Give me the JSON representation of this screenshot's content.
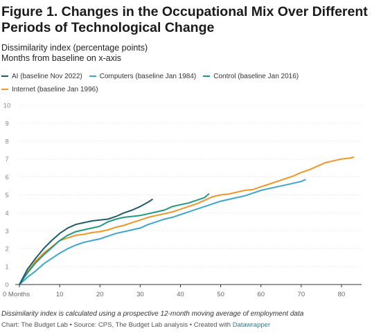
{
  "header": {
    "title": "Figure 1. Changes in the Occupational Mix Over Different Periods of Technological Change",
    "subtitle_line1": "Dissimilarity index (percentage points)",
    "subtitle_line2": "Months from baseline on x-axis"
  },
  "footer": {
    "note": "Dissimilarity index is calculated using a prospective 12-month moving average of employment data",
    "credits": "Chart: The Budget Lab • Source: CPS, The Budget Lab analysis • Created with ",
    "credits_link": "Datawrapper"
  },
  "chart_data": {
    "type": "line",
    "title": "Figure 1. Changes in the Occupational Mix Over Different Periods of Technological Change",
    "subtitle": "Dissimilarity index (percentage points)",
    "xlabel": "Months from baseline on x-axis",
    "ylabel": "Dissimilarity index (percentage points)",
    "xlim": [
      0,
      85
    ],
    "ylim": [
      0,
      10
    ],
    "x_ticks": [
      0,
      10,
      20,
      30,
      40,
      50,
      60,
      70,
      80
    ],
    "x_tick_labels": [
      "0 Months",
      "10",
      "20",
      "30",
      "40",
      "50",
      "60",
      "70",
      "80"
    ],
    "y_ticks": [
      0,
      1,
      2,
      3,
      4,
      5,
      6,
      7,
      8,
      9,
      10
    ],
    "y_tick_labels": [
      "0",
      "1",
      "2",
      "3",
      "4",
      "5",
      "6",
      "7",
      "8",
      "9",
      "10"
    ],
    "grid": true,
    "legend_position": "top",
    "series": [
      {
        "name": "AI (baseline Nov 2022)",
        "color": "#1d5b6b",
        "x": [
          0,
          2,
          4,
          6,
          8,
          10,
          12,
          14,
          16,
          18,
          20,
          22,
          24,
          26,
          28,
          30,
          32,
          33
        ],
        "y": [
          0,
          0.85,
          1.45,
          2.0,
          2.45,
          2.85,
          3.15,
          3.35,
          3.45,
          3.55,
          3.6,
          3.65,
          3.8,
          4.0,
          4.15,
          4.35,
          4.6,
          4.75
        ]
      },
      {
        "name": "Computers (baseline Jan 1984)",
        "color": "#3ba6d0",
        "x": [
          0,
          2,
          4,
          6,
          8,
          10,
          12,
          14,
          16,
          18,
          20,
          22,
          24,
          26,
          28,
          30,
          32,
          34,
          36,
          38,
          40,
          42,
          44,
          46,
          48,
          50,
          52,
          54,
          56,
          58,
          60,
          62,
          64,
          66,
          68,
          70,
          71
        ],
        "y": [
          0,
          0.4,
          0.75,
          1.15,
          1.45,
          1.75,
          2.0,
          2.2,
          2.35,
          2.45,
          2.55,
          2.7,
          2.85,
          2.95,
          3.05,
          3.15,
          3.35,
          3.5,
          3.65,
          3.75,
          3.9,
          4.05,
          4.2,
          4.35,
          4.5,
          4.65,
          4.75,
          4.85,
          4.95,
          5.1,
          5.25,
          5.35,
          5.45,
          5.55,
          5.65,
          5.75,
          5.85
        ]
      },
      {
        "name": "Control (baseline Jan 2016)",
        "color": "#1b9a82",
        "x": [
          0,
          2,
          4,
          6,
          8,
          10,
          12,
          14,
          16,
          18,
          20,
          22,
          24,
          26,
          28,
          30,
          32,
          34,
          36,
          38,
          40,
          42,
          44,
          46,
          47
        ],
        "y": [
          0,
          0.65,
          1.2,
          1.65,
          2.05,
          2.45,
          2.75,
          2.95,
          3.05,
          3.15,
          3.25,
          3.5,
          3.65,
          3.75,
          3.8,
          3.85,
          3.95,
          4.05,
          4.15,
          4.35,
          4.45,
          4.55,
          4.7,
          4.85,
          5.05
        ]
      },
      {
        "name": "Internet (baseline Jan 1996)",
        "color": "#f29524",
        "x": [
          0,
          2,
          4,
          6,
          8,
          10,
          12,
          14,
          16,
          18,
          20,
          22,
          24,
          26,
          28,
          30,
          32,
          34,
          36,
          38,
          40,
          42,
          44,
          46,
          48,
          50,
          52,
          54,
          56,
          58,
          60,
          62,
          64,
          66,
          68,
          70,
          72,
          74,
          76,
          78,
          80,
          82,
          83
        ],
        "y": [
          0,
          0.7,
          1.3,
          1.75,
          2.1,
          2.45,
          2.6,
          2.75,
          2.8,
          2.9,
          2.95,
          3.05,
          3.2,
          3.3,
          3.45,
          3.6,
          3.75,
          3.85,
          3.95,
          4.05,
          4.2,
          4.35,
          4.5,
          4.7,
          4.9,
          5.0,
          5.05,
          5.15,
          5.25,
          5.3,
          5.45,
          5.6,
          5.75,
          5.9,
          6.05,
          6.25,
          6.4,
          6.6,
          6.8,
          6.9,
          7.0,
          7.05,
          7.1
        ]
      }
    ]
  }
}
